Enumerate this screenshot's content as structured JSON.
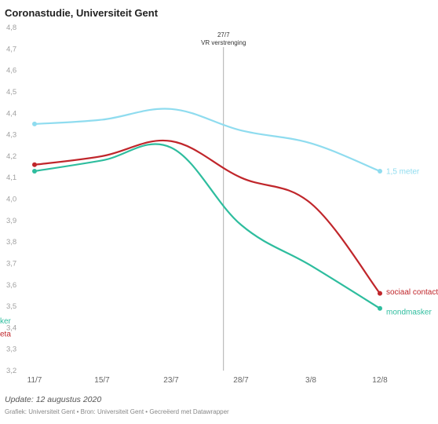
{
  "title": "Coronastudie, Universiteit Gent",
  "update": "Update: 12 augustus 2020",
  "source": "Grafiek: Universiteit Gent • Bron: Universiteit Gent • Gecreëerd met Datawrapper",
  "chart_data": {
    "type": "line",
    "categories": [
      "11/7",
      "15/7",
      "23/7",
      "28/7",
      "3/8",
      "12/8"
    ],
    "ylim": [
      3.2,
      4.8
    ],
    "yticks": [
      "4,8",
      "4,7",
      "4,6",
      "4,5",
      "4,4",
      "4,3",
      "4,2",
      "4,1",
      "4,0",
      "3,9",
      "3,8",
      "3,7",
      "3,6",
      "3,5",
      "3,4",
      "3,3",
      "3,2"
    ],
    "annotation": {
      "line1": "27/7",
      "line2": "VR verstrenging"
    },
    "series": [
      {
        "name": "1,5 meter",
        "color": "#8fdcef",
        "values": [
          4.35,
          4.37,
          4.42,
          4.32,
          4.26,
          4.13
        ]
      },
      {
        "name": "sociaal contact",
        "color": "#c0262b",
        "values": [
          4.16,
          4.2,
          4.27,
          4.1,
          3.98,
          3.56
        ]
      },
      {
        "name": "mondmasker",
        "color": "#2ebd9e",
        "values": [
          4.13,
          4.18,
          4.24,
          3.88,
          3.69,
          3.49
        ]
      }
    ],
    "left_fragments": [
      {
        "text": "ker",
        "color": "#2ebd9e",
        "y": 3.43
      },
      {
        "text": "eta",
        "color": "#c0262b",
        "y": 3.37
      }
    ]
  }
}
